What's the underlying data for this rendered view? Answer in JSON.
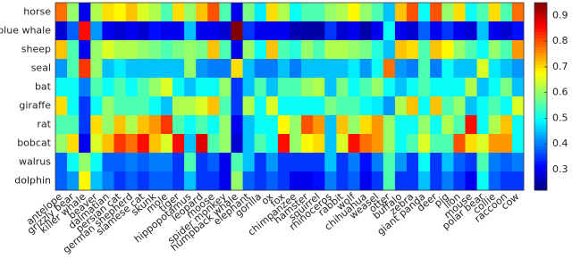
{
  "chart_data": {
    "type": "heatmap",
    "rows": [
      "horse",
      "blue whale",
      "sheep",
      "seal",
      "bat",
      "giraffe",
      "rat",
      "bobcat",
      "walrus",
      "dolphin"
    ],
    "columns": [
      "antelope",
      "grizzly bear",
      "killer whale",
      "beaver",
      "dalmatian",
      "persian cat",
      "german shepherd",
      "siamese cat",
      "skunk",
      "mole",
      "tiger",
      "hippopotamus",
      "leopard",
      "moose",
      "spider monkey",
      "humpback whale",
      "elephant",
      "gorilla",
      "ox",
      "fox",
      "chimpanzee",
      "hamster",
      "squirrel",
      "rhinoceros",
      "rabbit",
      "wolf",
      "chihuahua",
      "weasel",
      "otter",
      "buffalo",
      "zebra",
      "giant panda",
      "deer",
      "pig",
      "lion",
      "mouse",
      "polar bear",
      "collie",
      "raccoon",
      "cow"
    ],
    "values": [
      [
        0.78,
        0.6,
        0.3,
        0.62,
        0.7,
        0.68,
        0.72,
        0.65,
        0.62,
        0.55,
        0.7,
        0.6,
        0.72,
        0.8,
        0.55,
        0.3,
        0.58,
        0.48,
        0.7,
        0.62,
        0.5,
        0.55,
        0.55,
        0.6,
        0.62,
        0.68,
        0.6,
        0.55,
        0.45,
        0.72,
        0.8,
        0.5,
        0.8,
        0.6,
        0.7,
        0.5,
        0.55,
        0.7,
        0.55,
        0.78
      ],
      [
        0.28,
        0.38,
        0.85,
        0.42,
        0.3,
        0.28,
        0.3,
        0.28,
        0.32,
        0.3,
        0.3,
        0.45,
        0.3,
        0.3,
        0.28,
        0.95,
        0.35,
        0.3,
        0.3,
        0.3,
        0.26,
        0.25,
        0.25,
        0.35,
        0.28,
        0.3,
        0.25,
        0.3,
        0.5,
        0.3,
        0.28,
        0.38,
        0.3,
        0.35,
        0.3,
        0.28,
        0.45,
        0.3,
        0.28,
        0.32
      ],
      [
        0.72,
        0.55,
        0.3,
        0.6,
        0.65,
        0.62,
        0.62,
        0.6,
        0.58,
        0.55,
        0.58,
        0.6,
        0.58,
        0.72,
        0.55,
        0.3,
        0.6,
        0.5,
        0.72,
        0.55,
        0.52,
        0.6,
        0.55,
        0.62,
        0.62,
        0.6,
        0.58,
        0.52,
        0.45,
        0.72,
        0.7,
        0.55,
        0.72,
        0.68,
        0.6,
        0.55,
        0.5,
        0.6,
        0.55,
        0.75
      ],
      [
        0.42,
        0.55,
        0.82,
        0.6,
        0.45,
        0.48,
        0.45,
        0.45,
        0.45,
        0.45,
        0.45,
        0.6,
        0.42,
        0.4,
        0.4,
        0.7,
        0.45,
        0.4,
        0.4,
        0.45,
        0.4,
        0.45,
        0.45,
        0.45,
        0.45,
        0.48,
        0.42,
        0.5,
        0.78,
        0.42,
        0.4,
        0.55,
        0.4,
        0.5,
        0.45,
        0.45,
        0.65,
        0.48,
        0.45,
        0.42
      ],
      [
        0.5,
        0.5,
        0.4,
        0.55,
        0.5,
        0.55,
        0.5,
        0.55,
        0.6,
        0.65,
        0.5,
        0.45,
        0.5,
        0.5,
        0.6,
        0.35,
        0.45,
        0.55,
        0.45,
        0.55,
        0.55,
        0.6,
        0.62,
        0.45,
        0.58,
        0.5,
        0.55,
        0.6,
        0.5,
        0.45,
        0.5,
        0.55,
        0.5,
        0.5,
        0.5,
        0.62,
        0.45,
        0.5,
        0.58,
        0.45
      ],
      [
        0.7,
        0.5,
        0.35,
        0.5,
        0.6,
        0.55,
        0.55,
        0.55,
        0.5,
        0.45,
        0.62,
        0.62,
        0.65,
        0.72,
        0.55,
        0.35,
        0.62,
        0.5,
        0.65,
        0.5,
        0.5,
        0.5,
        0.5,
        0.58,
        0.55,
        0.55,
        0.5,
        0.48,
        0.42,
        0.62,
        0.72,
        0.5,
        0.72,
        0.55,
        0.6,
        0.45,
        0.5,
        0.55,
        0.5,
        0.65
      ],
      [
        0.55,
        0.55,
        0.35,
        0.7,
        0.6,
        0.72,
        0.62,
        0.72,
        0.75,
        0.82,
        0.55,
        0.5,
        0.55,
        0.5,
        0.6,
        0.3,
        0.45,
        0.5,
        0.5,
        0.68,
        0.6,
        0.8,
        0.75,
        0.45,
        0.72,
        0.6,
        0.7,
        0.75,
        0.6,
        0.5,
        0.5,
        0.6,
        0.5,
        0.62,
        0.55,
        0.85,
        0.5,
        0.62,
        0.72,
        0.5
      ],
      [
        0.6,
        0.7,
        0.3,
        0.65,
        0.72,
        0.82,
        0.78,
        0.85,
        0.72,
        0.65,
        0.85,
        0.45,
        0.88,
        0.55,
        0.6,
        0.28,
        0.45,
        0.55,
        0.5,
        0.85,
        0.6,
        0.68,
        0.7,
        0.45,
        0.65,
        0.85,
        0.78,
        0.75,
        0.6,
        0.5,
        0.55,
        0.65,
        0.55,
        0.55,
        0.8,
        0.7,
        0.65,
        0.75,
        0.75,
        0.5
      ],
      [
        0.38,
        0.5,
        0.6,
        0.5,
        0.38,
        0.38,
        0.4,
        0.38,
        0.4,
        0.4,
        0.35,
        0.55,
        0.35,
        0.38,
        0.3,
        0.55,
        0.45,
        0.35,
        0.42,
        0.35,
        0.35,
        0.35,
        0.35,
        0.45,
        0.35,
        0.4,
        0.32,
        0.4,
        0.55,
        0.42,
        0.35,
        0.5,
        0.35,
        0.45,
        0.38,
        0.35,
        0.55,
        0.4,
        0.38,
        0.4
      ],
      [
        0.38,
        0.42,
        0.68,
        0.45,
        0.4,
        0.35,
        0.38,
        0.35,
        0.38,
        0.38,
        0.35,
        0.45,
        0.35,
        0.35,
        0.3,
        0.6,
        0.38,
        0.35,
        0.38,
        0.35,
        0.3,
        0.3,
        0.32,
        0.4,
        0.35,
        0.38,
        0.3,
        0.35,
        0.55,
        0.35,
        0.35,
        0.45,
        0.35,
        0.4,
        0.35,
        0.3,
        0.5,
        0.38,
        0.35,
        0.35
      ]
    ],
    "colormap": "jet",
    "clim": [
      0.22,
      0.95
    ],
    "cticks": [
      0.3,
      0.4,
      0.5,
      0.6,
      0.7,
      0.8,
      0.9
    ]
  }
}
